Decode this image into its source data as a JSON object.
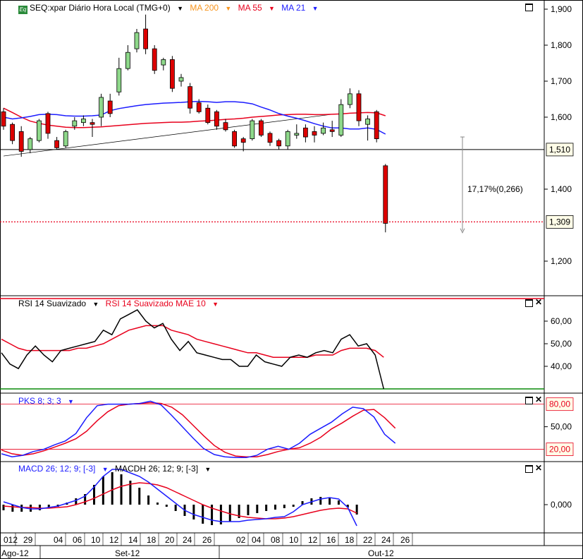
{
  "title": "SEQ:xpar Diário Hora Local (TMG+0)",
  "overlays": [
    {
      "label": "MA 200",
      "color": "#f7941d"
    },
    {
      "label": "MA 55",
      "color": "#e8001c"
    },
    {
      "label": "MA 21",
      "color": "#1c1cff"
    }
  ],
  "price_axis_labels": [
    "1,900",
    "1,800",
    "1,700",
    "1,600",
    "1,400",
    "1,200"
  ],
  "price_markers": {
    "support": "1,510",
    "last": "1,309"
  },
  "measure_label": "17,17%(0,266)",
  "rsi_pane": {
    "labels": [
      {
        "text": "RSI 14 Suavizado",
        "color": "#000000"
      },
      {
        "text": "RSI 14 Suavizado MAE 10",
        "color": "#e8001c"
      }
    ],
    "axis_labels": [
      "60,00",
      "50,00",
      "40,00"
    ]
  },
  "pks_pane": {
    "labels": [
      {
        "text": "PKS 8; 3; 3",
        "color": "#1c1cff"
      }
    ],
    "axis_labels": [
      "50,00"
    ],
    "level_markers": [
      "80,00",
      "20,00"
    ]
  },
  "macd_pane": {
    "labels": [
      {
        "text": "MACD 26; 12; 9; [-3]",
        "color": "#1c1cff"
      },
      {
        "text": "MACDH 26; 12; 9; [-3]",
        "color": "#000000"
      }
    ],
    "axis_labels": [
      "0,000"
    ]
  },
  "x_axis": {
    "day_labels": [
      "012",
      "29",
      "04",
      "06",
      "10",
      "12",
      "14",
      "18",
      "20",
      "24",
      "26",
      "02",
      "04",
      "08",
      "10",
      "12",
      "16",
      "18",
      "22",
      "24",
      "26"
    ],
    "month_labels": [
      "Ago-12",
      "Set-12",
      "Out-12"
    ]
  },
  "chart_data": {
    "type": "candlestick",
    "price_ylim": [
      1.1,
      1.9
    ],
    "candles": [
      {
        "o": 1.615,
        "h": 1.625,
        "l": 1.565,
        "c": 1.575
      },
      {
        "o": 1.58,
        "h": 1.585,
        "l": 1.525,
        "c": 1.535
      },
      {
        "o": 1.56,
        "h": 1.575,
        "l": 1.49,
        "c": 1.505
      },
      {
        "o": 1.51,
        "h": 1.545,
        "l": 1.5,
        "c": 1.54
      },
      {
        "o": 1.535,
        "h": 1.595,
        "l": 1.53,
        "c": 1.59
      },
      {
        "o": 1.61,
        "h": 1.615,
        "l": 1.54,
        "c": 1.555
      },
      {
        "o": 1.535,
        "h": 1.545,
        "l": 1.51,
        "c": 1.515
      },
      {
        "o": 1.52,
        "h": 1.565,
        "l": 1.515,
        "c": 1.56
      },
      {
        "o": 1.575,
        "h": 1.6,
        "l": 1.565,
        "c": 1.59
      },
      {
        "o": 1.585,
        "h": 1.605,
        "l": 1.575,
        "c": 1.595
      },
      {
        "o": 1.585,
        "h": 1.595,
        "l": 1.545,
        "c": 1.58
      },
      {
        "o": 1.6,
        "h": 1.665,
        "l": 1.575,
        "c": 1.655
      },
      {
        "o": 1.645,
        "h": 1.665,
        "l": 1.6,
        "c": 1.61
      },
      {
        "o": 1.67,
        "h": 1.765,
        "l": 1.66,
        "c": 1.735
      },
      {
        "o": 1.735,
        "h": 1.8,
        "l": 1.73,
        "c": 1.78
      },
      {
        "o": 1.79,
        "h": 1.845,
        "l": 1.78,
        "c": 1.835
      },
      {
        "o": 1.845,
        "h": 1.885,
        "l": 1.775,
        "c": 1.79
      },
      {
        "o": 1.79,
        "h": 1.8,
        "l": 1.72,
        "c": 1.73
      },
      {
        "o": 1.745,
        "h": 1.765,
        "l": 1.73,
        "c": 1.76
      },
      {
        "o": 1.76,
        "h": 1.77,
        "l": 1.67,
        "c": 1.68
      },
      {
        "o": 1.7,
        "h": 1.72,
        "l": 1.685,
        "c": 1.71
      },
      {
        "o": 1.685,
        "h": 1.695,
        "l": 1.61,
        "c": 1.625
      },
      {
        "o": 1.64,
        "h": 1.65,
        "l": 1.61,
        "c": 1.615
      },
      {
        "o": 1.625,
        "h": 1.635,
        "l": 1.58,
        "c": 1.585
      },
      {
        "o": 1.615,
        "h": 1.62,
        "l": 1.565,
        "c": 1.575
      },
      {
        "o": 1.585,
        "h": 1.595,
        "l": 1.56,
        "c": 1.565
      },
      {
        "o": 1.56,
        "h": 1.565,
        "l": 1.515,
        "c": 1.52
      },
      {
        "o": 1.54,
        "h": 1.545,
        "l": 1.505,
        "c": 1.53
      },
      {
        "o": 1.54,
        "h": 1.595,
        "l": 1.535,
        "c": 1.59
      },
      {
        "o": 1.59,
        "h": 1.595,
        "l": 1.545,
        "c": 1.55
      },
      {
        "o": 1.555,
        "h": 1.56,
        "l": 1.52,
        "c": 1.53
      },
      {
        "o": 1.535,
        "h": 1.54,
        "l": 1.51,
        "c": 1.52
      },
      {
        "o": 1.52,
        "h": 1.565,
        "l": 1.51,
        "c": 1.56
      },
      {
        "o": 1.55,
        "h": 1.58,
        "l": 1.54,
        "c": 1.555
      },
      {
        "o": 1.57,
        "h": 1.58,
        "l": 1.53,
        "c": 1.545
      },
      {
        "o": 1.56,
        "h": 1.575,
        "l": 1.53,
        "c": 1.55
      },
      {
        "o": 1.555,
        "h": 1.585,
        "l": 1.55,
        "c": 1.57
      },
      {
        "o": 1.565,
        "h": 1.59,
        "l": 1.545,
        "c": 1.56
      },
      {
        "o": 1.55,
        "h": 1.65,
        "l": 1.545,
        "c": 1.635
      },
      {
        "o": 1.635,
        "h": 1.68,
        "l": 1.625,
        "c": 1.665
      },
      {
        "o": 1.665,
        "h": 1.675,
        "l": 1.575,
        "c": 1.59
      },
      {
        "o": 1.58,
        "h": 1.605,
        "l": 1.535,
        "c": 1.595
      },
      {
        "o": 1.615,
        "h": 1.62,
        "l": 1.53,
        "c": 1.54
      },
      {
        "o": 1.465,
        "h": 1.47,
        "l": 1.28,
        "c": 1.305
      }
    ],
    "ma21": [
      1.6,
      1.595,
      1.598,
      1.602,
      1.607,
      1.608,
      1.607,
      1.604,
      1.603,
      1.603,
      1.604,
      1.606,
      1.618,
      1.624,
      1.628,
      1.632,
      1.635,
      1.637,
      1.639,
      1.64,
      1.641,
      1.643,
      1.644,
      1.643,
      1.641,
      1.643,
      1.643,
      1.641,
      1.637,
      1.628,
      1.62,
      1.61,
      1.603,
      1.597,
      1.59,
      1.582,
      1.575,
      1.57,
      1.57,
      1.567,
      1.567,
      1.57,
      1.566,
      1.553
    ],
    "ma55": [
      1.625,
      1.613,
      1.6,
      1.589,
      1.583,
      1.578,
      1.575,
      1.572,
      1.571,
      1.571,
      1.572,
      1.573,
      1.575,
      1.577,
      1.579,
      1.581,
      1.583,
      1.584,
      1.585,
      1.586,
      1.586,
      1.587,
      1.589,
      1.59,
      1.592,
      1.594,
      1.595,
      1.597,
      1.6,
      1.602,
      1.604,
      1.606,
      1.607,
      1.608,
      1.608,
      1.607,
      1.607,
      1.608,
      1.609,
      1.611,
      1.612,
      1.613,
      1.612,
      1.604
    ],
    "trendline": [
      [
        0,
        1.492
      ],
      [
        37,
        1.608
      ]
    ],
    "support_level": 1.51,
    "last_level": 1.309,
    "measure": {
      "from": 1.545,
      "to": 1.279,
      "pct": "17,17%",
      "diff": "0,266"
    },
    "rsi": [
      46,
      41,
      39,
      45,
      49,
      45,
      42,
      47,
      48,
      49,
      50,
      51,
      56,
      54,
      61,
      63,
      65,
      60,
      57,
      59,
      52,
      47,
      51,
      46,
      45,
      44,
      43,
      43,
      40,
      40,
      45,
      42,
      41,
      40,
      44,
      45,
      44,
      46,
      47,
      46,
      52,
      54,
      49,
      50,
      45,
      30
    ],
    "rsi_ma": [
      52,
      50,
      48,
      47,
      47,
      47,
      47,
      47,
      47,
      48,
      48,
      49,
      50,
      52,
      54,
      56,
      57,
      58,
      58,
      58,
      56,
      55,
      54,
      52,
      51,
      50,
      49,
      48,
      47,
      46,
      46,
      45,
      44,
      44,
      44,
      44,
      44,
      45,
      45,
      45,
      47,
      48,
      48,
      48,
      47,
      44
    ],
    "rsi_ylim": [
      30,
      70
    ],
    "pks_k": [
      14,
      10,
      12,
      17,
      20,
      26,
      31,
      41,
      62,
      78,
      80,
      80,
      80,
      81,
      84,
      79,
      65,
      50,
      35,
      21,
      13,
      10,
      9,
      9,
      12,
      20,
      24,
      20,
      28,
      40,
      48,
      56,
      67,
      76,
      74,
      63,
      40,
      28
    ],
    "pks_d": [
      19,
      14,
      12,
      14,
      18,
      23,
      28,
      34,
      44,
      58,
      70,
      78,
      80,
      81,
      82,
      81,
      76,
      66,
      52,
      38,
      25,
      16,
      11,
      10,
      10,
      13,
      17,
      20,
      22,
      28,
      36,
      47,
      55,
      64,
      72,
      73,
      62,
      48
    ],
    "pks_ylim": [
      5,
      90
    ],
    "pks_levels": [
      80,
      20
    ],
    "macd": [
      0.004,
      0.0,
      -0.004,
      -0.006,
      -0.006,
      -0.004,
      -0.002,
      0.002,
      0.006,
      0.012,
      0.025,
      0.04,
      0.05,
      0.05,
      0.045,
      0.04,
      0.032,
      0.022,
      0.012,
      0.002,
      -0.008,
      -0.014,
      -0.018,
      -0.022,
      -0.024,
      -0.024,
      -0.024,
      -0.022,
      -0.021,
      -0.02,
      -0.018,
      -0.017,
      -0.01,
      0.0,
      0.004,
      0.008,
      0.01,
      0.008,
      -0.004,
      -0.03
    ],
    "macd_signal": [
      -0.002,
      -0.003,
      -0.004,
      -0.004,
      -0.005,
      -0.005,
      -0.004,
      -0.003,
      0.0,
      0.004,
      0.009,
      0.015,
      0.021,
      0.026,
      0.029,
      0.031,
      0.03,
      0.028,
      0.024,
      0.018,
      0.012,
      0.006,
      0.0,
      -0.005,
      -0.009,
      -0.013,
      -0.016,
      -0.018,
      -0.019,
      -0.02,
      -0.02,
      -0.019,
      -0.017,
      -0.014,
      -0.011,
      -0.008,
      -0.006,
      -0.005,
      -0.006,
      -0.012
    ],
    "macdh": [
      -0.008,
      -0.01,
      -0.01,
      -0.01,
      -0.008,
      -0.005,
      -0.003,
      0.003,
      0.009,
      0.015,
      0.028,
      0.04,
      0.046,
      0.043,
      0.034,
      0.024,
      0.013,
      0.003,
      -0.003,
      -0.009,
      -0.016,
      -0.021,
      -0.027,
      -0.029,
      -0.028,
      -0.024,
      -0.019,
      -0.015,
      -0.012,
      -0.009,
      -0.007,
      -0.005,
      -0.003,
      0.005,
      0.009,
      0.011,
      0.01,
      0.006,
      -0.004,
      -0.014
    ],
    "macd_ylim": [
      -0.034,
      0.052
    ]
  }
}
